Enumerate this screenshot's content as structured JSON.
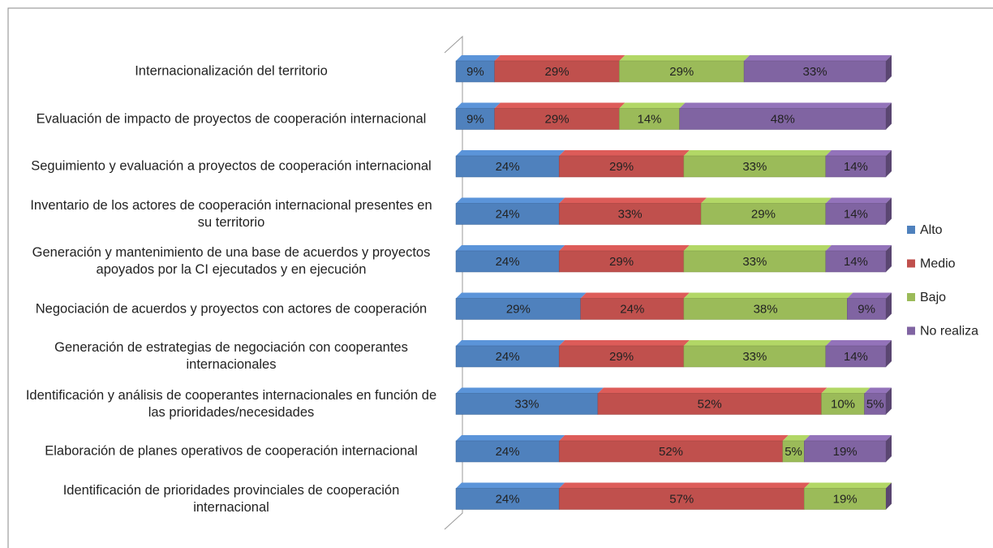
{
  "chart_data": {
    "type": "stacked-bar-horizontal",
    "categories": [
      "Internacionalización del territorio",
      "Evaluación de impacto de proyectos de cooperación internacional",
      "Seguimiento y evaluación a proyectos de cooperación internacional",
      "Inventario de los actores de cooperación internacional presentes en su territorio",
      "Generación y mantenimiento de una base de acuerdos y proyectos apoyados por la CI ejecutados y en ejecución",
      "Negociación de acuerdos y proyectos con actores de cooperación",
      "Generación de estrategias de negociación con cooperantes internacionales",
      "Identificación y análisis de cooperantes internacionales en función de las prioridades/necesidades",
      "Elaboración de planes operativos de cooperación internacional",
      "Identificación de prioridades provinciales de cooperación internacional"
    ],
    "series": [
      {
        "name": "Alto",
        "color": "#4f81bd",
        "values": [
          9,
          9,
          24,
          24,
          24,
          29,
          24,
          33,
          24,
          24
        ],
        "value_labels": [
          "9%",
          "9%",
          "24%",
          "24%",
          "24%",
          "29%",
          "24%",
          "33%",
          "24%",
          "24%"
        ]
      },
      {
        "name": "Medio",
        "color": "#c0504d",
        "values": [
          29,
          29,
          29,
          33,
          29,
          24,
          29,
          52,
          52,
          57
        ],
        "value_labels": [
          "29%",
          "29%",
          "29%",
          "33%",
          "29%",
          "24%",
          "29%",
          "52%",
          "52%",
          "57%"
        ]
      },
      {
        "name": "Bajo",
        "color": "#9bbb59",
        "values": [
          29,
          14,
          33,
          29,
          33,
          38,
          33,
          10,
          5,
          19
        ],
        "value_labels": [
          "29%",
          "14%",
          "33%",
          "29%",
          "33%",
          "38%",
          "33%",
          "10%",
          "5%",
          "19%"
        ]
      },
      {
        "name": "No realiza",
        "color": "#8064a2",
        "values": [
          33,
          48,
          14,
          14,
          14,
          9,
          14,
          5,
          19,
          0
        ],
        "value_labels": [
          "33%",
          "48%",
          "14%",
          "14%",
          "14%",
          "9%",
          "14%",
          "5%",
          "19%",
          null
        ]
      }
    ],
    "xlim": [
      0,
      100
    ],
    "legend": "right"
  }
}
